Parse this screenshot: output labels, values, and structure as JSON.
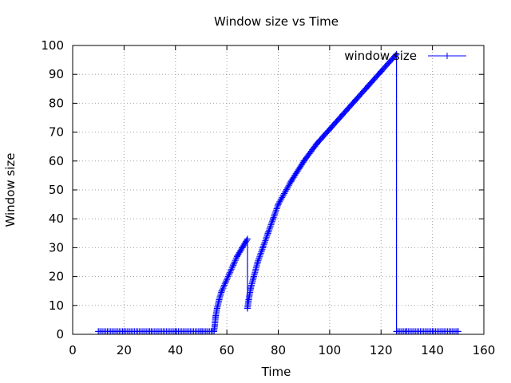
{
  "chart_data": {
    "type": "line",
    "title": "Window size vs Time",
    "xlabel": "Time",
    "ylabel": "Window size",
    "xlim": [
      0,
      160
    ],
    "ylim": [
      0,
      100
    ],
    "xticks": [
      0,
      20,
      40,
      60,
      80,
      100,
      120,
      140,
      160
    ],
    "yticks": [
      0,
      10,
      20,
      30,
      40,
      50,
      60,
      70,
      80,
      90,
      100
    ],
    "grid": true,
    "legend_position": "top-right",
    "series": [
      {
        "name": "window size",
        "color": "#0000ff",
        "marker": "plus",
        "points": [
          [
            10,
            1
          ],
          [
            20,
            1
          ],
          [
            30,
            1
          ],
          [
            40,
            1
          ],
          [
            50,
            1
          ],
          [
            55,
            1
          ],
          [
            55.3,
            3
          ],
          [
            55.6,
            6
          ],
          [
            56.2,
            9
          ],
          [
            57,
            12
          ],
          [
            58,
            15
          ],
          [
            59.5,
            18
          ],
          [
            61,
            21
          ],
          [
            62.5,
            24
          ],
          [
            64,
            27
          ],
          [
            66,
            30
          ],
          [
            68,
            33
          ],
          [
            68,
            9
          ],
          [
            68.5,
            12
          ],
          [
            69.3,
            16
          ],
          [
            70.5,
            20
          ],
          [
            72,
            25
          ],
          [
            74,
            30
          ],
          [
            76,
            35
          ],
          [
            78,
            40
          ],
          [
            80,
            45
          ],
          [
            85,
            53
          ],
          [
            90,
            60
          ],
          [
            95,
            66
          ],
          [
            100,
            71
          ],
          [
            105,
            76
          ],
          [
            110,
            81
          ],
          [
            115,
            86
          ],
          [
            120,
            91
          ],
          [
            126,
            97
          ],
          [
            126,
            1
          ],
          [
            130,
            1
          ],
          [
            140,
            1
          ],
          [
            150,
            1
          ]
        ]
      }
    ]
  }
}
